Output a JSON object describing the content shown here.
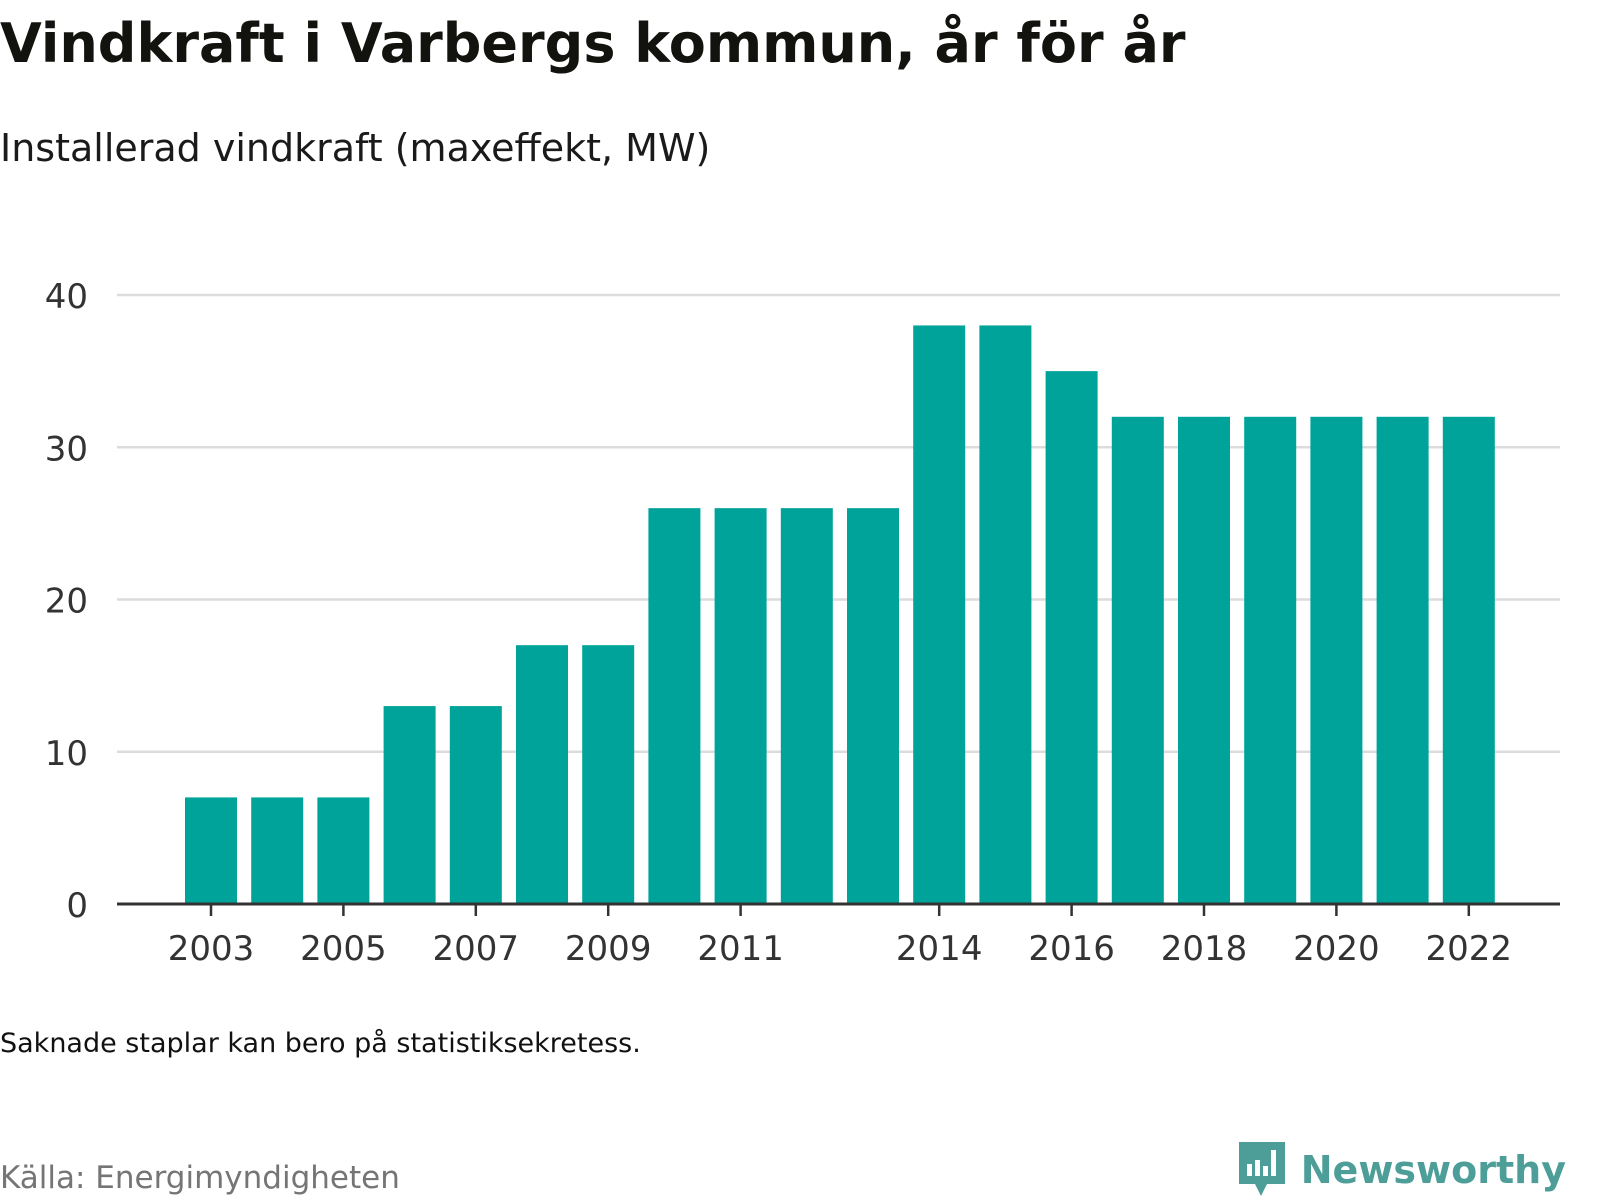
{
  "header": {
    "title": "Vindkraft i Varbergs kommun, år för år",
    "subtitle": "Installerad vindkraft (maxeffekt, MW)"
  },
  "footer": {
    "note": "Saknade staplar kan bero på statistiksekretess.",
    "source": "Källa: Energimyndigheten",
    "brand": "Newsworthy",
    "brand_icon": "bar-chart-logo-icon"
  },
  "colors": {
    "bar": "#00a39a",
    "grid": "#dcdcdc",
    "axis": "#333333",
    "tick_text": "#333333",
    "brand": "#4d9e98"
  },
  "chart_data": {
    "type": "bar",
    "title": "Vindkraft i Varbergs kommun, år för år",
    "subtitle": "Installerad vindkraft (maxeffekt, MW)",
    "categories": [
      "2003",
      "2004",
      "2005",
      "2006",
      "2007",
      "2008",
      "2009",
      "2010",
      "2011",
      "2012",
      "2013",
      "2014",
      "2015",
      "2016",
      "2017",
      "2018",
      "2019",
      "2020",
      "2021",
      "2022"
    ],
    "values": [
      7,
      7,
      7,
      13,
      13,
      17,
      17,
      26,
      26,
      26,
      26,
      38,
      38,
      35,
      32,
      32,
      32,
      32,
      32,
      32
    ],
    "x_tick_labels": [
      "2003",
      "2005",
      "2007",
      "2009",
      "2011",
      "2014",
      "2016",
      "2018",
      "2020",
      "2022"
    ],
    "y_ticks": [
      0,
      10,
      20,
      30,
      40
    ],
    "ylim": [
      0,
      40
    ],
    "xlabel": "",
    "ylabel": "",
    "grid": true,
    "legend": "none"
  }
}
